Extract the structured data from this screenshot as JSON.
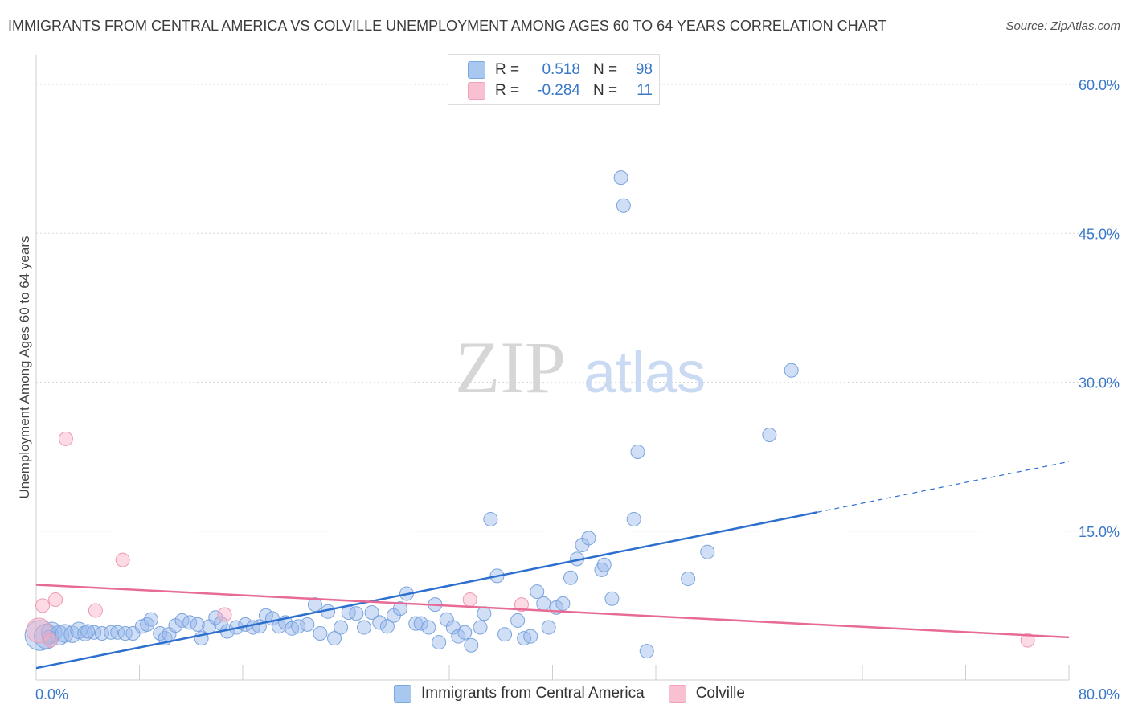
{
  "title": "IMMIGRANTS FROM CENTRAL AMERICA VS COLVILLE UNEMPLOYMENT AMONG AGES 60 TO 64 YEARS CORRELATION CHART",
  "source": "Source: ZipAtlas.com",
  "watermark": {
    "zip": "ZIP",
    "atlas": "atlas"
  },
  "stats_legend": [
    {
      "r_label": "R =",
      "r_value": "0.518",
      "n_label": "N =",
      "n_value": "98",
      "color": "#a9c8f0",
      "border": "#7aa8e0"
    },
    {
      "r_label": "R =",
      "r_value": "-0.284",
      "n_label": "N =",
      "n_value": "11",
      "color": "#f8c0d0",
      "border": "#f0a0b8"
    }
  ],
  "series_legend": [
    {
      "name": "Immigrants from Central America",
      "color": "#a9c8f0",
      "border": "#7aa8e0"
    },
    {
      "name": "Colville",
      "color": "#f8c0d0",
      "border": "#f0a0b8"
    }
  ],
  "colors": {
    "blue_fill": "rgba(150,185,235,0.45)",
    "blue_stroke": "#7aa3dd",
    "blue_line": "#2d6fce",
    "pink_fill": "rgba(248,175,198,0.45)",
    "pink_stroke": "#ee9ab4",
    "pink_line": "#e76b94",
    "grid": "#d9d9d9",
    "tick_label": "#3a78c9"
  },
  "chart_data": {
    "type": "scatter",
    "title": "IMMIGRANTS FROM CENTRAL AMERICA VS COLVILLE UNEMPLOYMENT AMONG AGES 60 TO 64 YEARS CORRELATION CHART",
    "xlabel": "",
    "ylabel": "Unemployment Among Ages 60 to 64 years",
    "xlim": [
      0,
      80
    ],
    "ylim": [
      0,
      63
    ],
    "x_tick_labels": [
      "0.0%",
      "80.0%"
    ],
    "y_ticks": [
      15,
      30,
      45,
      60
    ],
    "y_tick_labels": [
      "15.0%",
      "30.0%",
      "45.0%",
      "60.0%"
    ],
    "grid": true,
    "legend": "top-center",
    "series": [
      {
        "name": "Immigrants from Central America",
        "r": 0.518,
        "n": 98,
        "trend": {
          "x0": 0,
          "y0": 1.2,
          "x1": 60.5,
          "y1": 16.9,
          "dashed_to_x": 80,
          "dashed_to_y": 22.0
        },
        "points": [
          {
            "x": 0.3,
            "y": 4.5,
            "s": 2.2
          },
          {
            "x": 0.8,
            "y": 4.4,
            "s": 1.8
          },
          {
            "x": 1.2,
            "y": 4.8,
            "s": 1.5
          },
          {
            "x": 1.8,
            "y": 4.5,
            "s": 1.4
          },
          {
            "x": 2.2,
            "y": 4.7,
            "s": 1.3
          },
          {
            "x": 2.8,
            "y": 4.6,
            "s": 1.2
          },
          {
            "x": 3.3,
            "y": 5.0,
            "s": 1.2
          },
          {
            "x": 3.8,
            "y": 4.7,
            "s": 1.1
          },
          {
            "x": 4.5,
            "y": 4.8,
            "s": 1
          },
          {
            "x": 5.1,
            "y": 4.7,
            "s": 1
          },
          {
            "x": 5.8,
            "y": 4.8,
            "s": 1
          },
          {
            "x": 6.3,
            "y": 4.8,
            "s": 1
          },
          {
            "x": 6.9,
            "y": 4.7,
            "s": 1
          },
          {
            "x": 7.5,
            "y": 4.7,
            "s": 1
          },
          {
            "x": 8.2,
            "y": 5.4,
            "s": 1
          },
          {
            "x": 8.6,
            "y": 5.6,
            "s": 1
          },
          {
            "x": 8.9,
            "y": 6.1,
            "s": 1
          },
          {
            "x": 9.6,
            "y": 4.7,
            "s": 1
          },
          {
            "x": 10.0,
            "y": 4.2,
            "s": 1
          },
          {
            "x": 10.3,
            "y": 4.6,
            "s": 1
          },
          {
            "x": 10.8,
            "y": 5.5,
            "s": 1
          },
          {
            "x": 11.3,
            "y": 6.0,
            "s": 1
          },
          {
            "x": 11.9,
            "y": 5.8,
            "s": 1
          },
          {
            "x": 12.5,
            "y": 5.6,
            "s": 1
          },
          {
            "x": 12.8,
            "y": 4.2,
            "s": 1
          },
          {
            "x": 13.4,
            "y": 5.4,
            "s": 1
          },
          {
            "x": 13.9,
            "y": 6.3,
            "s": 1
          },
          {
            "x": 14.3,
            "y": 5.7,
            "s": 1
          },
          {
            "x": 14.8,
            "y": 4.9,
            "s": 1
          },
          {
            "x": 15.5,
            "y": 5.3,
            "s": 1
          },
          {
            "x": 16.2,
            "y": 5.6,
            "s": 1
          },
          {
            "x": 16.8,
            "y": 5.3,
            "s": 1
          },
          {
            "x": 17.3,
            "y": 5.4,
            "s": 1
          },
          {
            "x": 17.8,
            "y": 6.5,
            "s": 1
          },
          {
            "x": 18.3,
            "y": 6.2,
            "s": 1
          },
          {
            "x": 18.8,
            "y": 5.4,
            "s": 1
          },
          {
            "x": 19.3,
            "y": 5.8,
            "s": 1
          },
          {
            "x": 19.8,
            "y": 5.2,
            "s": 1
          },
          {
            "x": 20.3,
            "y": 5.4,
            "s": 1
          },
          {
            "x": 21.0,
            "y": 5.6,
            "s": 1
          },
          {
            "x": 21.6,
            "y": 7.6,
            "s": 1
          },
          {
            "x": 22.0,
            "y": 4.7,
            "s": 1
          },
          {
            "x": 22.6,
            "y": 6.9,
            "s": 1
          },
          {
            "x": 23.1,
            "y": 4.2,
            "s": 1
          },
          {
            "x": 23.6,
            "y": 5.3,
            "s": 1
          },
          {
            "x": 24.2,
            "y": 6.8,
            "s": 1
          },
          {
            "x": 24.8,
            "y": 6.7,
            "s": 1
          },
          {
            "x": 25.4,
            "y": 5.3,
            "s": 1
          },
          {
            "x": 26.0,
            "y": 6.8,
            "s": 1
          },
          {
            "x": 26.6,
            "y": 5.8,
            "s": 1
          },
          {
            "x": 27.2,
            "y": 5.4,
            "s": 1
          },
          {
            "x": 27.7,
            "y": 6.5,
            "s": 1
          },
          {
            "x": 28.2,
            "y": 7.2,
            "s": 1
          },
          {
            "x": 28.7,
            "y": 8.7,
            "s": 1
          },
          {
            "x": 29.4,
            "y": 5.7,
            "s": 1
          },
          {
            "x": 29.8,
            "y": 5.7,
            "s": 1
          },
          {
            "x": 30.4,
            "y": 5.3,
            "s": 1
          },
          {
            "x": 30.9,
            "y": 7.6,
            "s": 1
          },
          {
            "x": 31.2,
            "y": 3.8,
            "s": 1
          },
          {
            "x": 31.8,
            "y": 6.1,
            "s": 1
          },
          {
            "x": 32.3,
            "y": 5.3,
            "s": 1
          },
          {
            "x": 32.7,
            "y": 4.4,
            "s": 1
          },
          {
            "x": 33.2,
            "y": 4.8,
            "s": 1
          },
          {
            "x": 33.7,
            "y": 3.5,
            "s": 1
          },
          {
            "x": 34.4,
            "y": 5.3,
            "s": 1
          },
          {
            "x": 34.7,
            "y": 6.7,
            "s": 1
          },
          {
            "x": 35.2,
            "y": 16.2,
            "s": 1
          },
          {
            "x": 35.7,
            "y": 10.5,
            "s": 1
          },
          {
            "x": 36.3,
            "y": 4.6,
            "s": 1
          },
          {
            "x": 37.3,
            "y": 6.0,
            "s": 1
          },
          {
            "x": 37.8,
            "y": 4.2,
            "s": 1
          },
          {
            "x": 38.3,
            "y": 4.4,
            "s": 1
          },
          {
            "x": 38.8,
            "y": 8.9,
            "s": 1
          },
          {
            "x": 39.3,
            "y": 7.7,
            "s": 1
          },
          {
            "x": 39.7,
            "y": 5.3,
            "s": 1
          },
          {
            "x": 40.3,
            "y": 7.3,
            "s": 1
          },
          {
            "x": 40.8,
            "y": 7.7,
            "s": 1
          },
          {
            "x": 41.4,
            "y": 10.3,
            "s": 1
          },
          {
            "x": 41.9,
            "y": 12.2,
            "s": 1
          },
          {
            "x": 42.3,
            "y": 13.6,
            "s": 1
          },
          {
            "x": 42.8,
            "y": 14.3,
            "s": 1
          },
          {
            "x": 43.8,
            "y": 11.1,
            "s": 1
          },
          {
            "x": 44.0,
            "y": 11.6,
            "s": 1
          },
          {
            "x": 44.6,
            "y": 8.2,
            "s": 1
          },
          {
            "x": 45.3,
            "y": 50.6,
            "s": 1
          },
          {
            "x": 45.5,
            "y": 47.8,
            "s": 1
          },
          {
            "x": 46.3,
            "y": 16.2,
            "s": 1
          },
          {
            "x": 46.6,
            "y": 23.0,
            "s": 1
          },
          {
            "x": 47.3,
            "y": 2.9,
            "s": 1
          },
          {
            "x": 50.5,
            "y": 10.2,
            "s": 1
          },
          {
            "x": 52.0,
            "y": 12.9,
            "s": 1
          },
          {
            "x": 56.8,
            "y": 24.7,
            "s": 1
          },
          {
            "x": 58.5,
            "y": 31.2,
            "s": 1
          },
          {
            "x": 1.0,
            "y": 4.3,
            "s": 1
          },
          {
            "x": 4.0,
            "y": 4.9,
            "s": 1
          }
        ]
      },
      {
        "name": "Colville",
        "r": -0.284,
        "n": 11,
        "trend": {
          "x0": 0,
          "y0": 9.6,
          "x1": 80,
          "y1": 4.3
        },
        "points": [
          {
            "x": 0.2,
            "y": 5.0,
            "s": 1.8
          },
          {
            "x": 0.5,
            "y": 7.5,
            "s": 1
          },
          {
            "x": 1.1,
            "y": 4.0,
            "s": 1
          },
          {
            "x": 1.5,
            "y": 8.1,
            "s": 1
          },
          {
            "x": 2.3,
            "y": 24.3,
            "s": 1
          },
          {
            "x": 4.6,
            "y": 7.0,
            "s": 1
          },
          {
            "x": 6.7,
            "y": 12.1,
            "s": 1
          },
          {
            "x": 14.6,
            "y": 6.6,
            "s": 1
          },
          {
            "x": 33.6,
            "y": 8.1,
            "s": 1
          },
          {
            "x": 37.6,
            "y": 7.6,
            "s": 1
          },
          {
            "x": 76.8,
            "y": 4.0,
            "s": 1
          }
        ]
      }
    ]
  }
}
